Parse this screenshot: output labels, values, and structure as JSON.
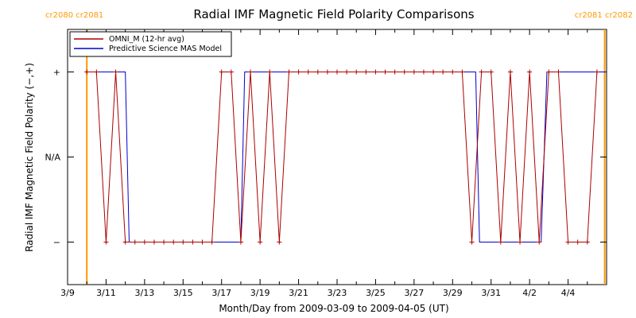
{
  "chart_data": {
    "type": "line",
    "title": "Radial IMF Magnetic Field Polarity Comparisons",
    "xlabel": "Month/Day from 2009-03-09 to 2009-04-05 (UT)",
    "ylabel": "Radial IMF Magnetic Field Polarity (−,+)",
    "x_unit": "days",
    "xlim": [
      0,
      28
    ],
    "ylim": [
      -1.5,
      1.5
    ],
    "x_ticks": [
      {
        "x": 0,
        "label": "3/9"
      },
      {
        "x": 2,
        "label": "3/11"
      },
      {
        "x": 4,
        "label": "3/13"
      },
      {
        "x": 6,
        "label": "3/15"
      },
      {
        "x": 8,
        "label": "3/17"
      },
      {
        "x": 10,
        "label": "3/19"
      },
      {
        "x": 12,
        "label": "3/21"
      },
      {
        "x": 14,
        "label": "3/23"
      },
      {
        "x": 16,
        "label": "3/25"
      },
      {
        "x": 18,
        "label": "3/27"
      },
      {
        "x": 20,
        "label": "3/29"
      },
      {
        "x": 22,
        "label": "3/31"
      },
      {
        "x": 24,
        "label": "4/2"
      },
      {
        "x": 26,
        "label": "4/4"
      }
    ],
    "y_ticks": [
      {
        "y": 1,
        "label": "+"
      },
      {
        "y": 0,
        "label": "N/A"
      },
      {
        "y": -1,
        "label": "−"
      }
    ],
    "cr_markers": {
      "color": "#ff9900",
      "lines_x": [
        1.0,
        27.9
      ],
      "left_label": "cr2080 cr2081",
      "right_label": "cr2081 cr2082"
    },
    "legend": {
      "position": "top-left",
      "entries": [
        {
          "label": "OMNI_M (12-hr avg)",
          "color": "#aa0000"
        },
        {
          "label": "Predictive Science MAS Model",
          "color": "#0000cc"
        }
      ]
    },
    "series": [
      {
        "name": "OMNI_M (12-hr avg)",
        "color": "#aa0000",
        "marker": "+",
        "x": [
          1.0,
          1.5,
          2.0,
          2.5,
          3.0,
          3.5,
          4.0,
          4.5,
          5.0,
          5.5,
          6.0,
          6.5,
          7.0,
          7.5,
          8.0,
          8.5,
          9.0,
          9.5,
          10.0,
          10.5,
          11.0,
          11.5,
          12.0,
          12.5,
          13.0,
          13.5,
          14.0,
          14.5,
          15.0,
          15.5,
          16.0,
          16.5,
          17.0,
          17.5,
          18.0,
          18.5,
          19.0,
          19.5,
          20.0,
          20.5,
          21.0,
          21.5,
          22.0,
          22.5,
          23.0,
          23.5,
          24.0,
          24.5,
          25.0,
          25.5,
          26.0,
          26.5,
          27.0,
          27.5
        ],
        "y": [
          1,
          1,
          -1,
          1,
          -1,
          -1,
          -1,
          -1,
          -1,
          -1,
          -1,
          -1,
          -1,
          -1,
          1,
          1,
          -1,
          1,
          -1,
          1,
          -1,
          1,
          1,
          1,
          1,
          1,
          1,
          1,
          1,
          1,
          1,
          1,
          1,
          1,
          1,
          1,
          1,
          1,
          1,
          1,
          -1,
          1,
          1,
          -1,
          1,
          -1,
          1,
          -1,
          1,
          1,
          -1,
          -1,
          -1,
          1
        ]
      },
      {
        "name": "Predictive Science MAS Model",
        "color": "#0000cc",
        "marker": "none",
        "x": [
          1.0,
          3.0,
          3.2,
          9.0,
          9.2,
          21.2,
          21.4,
          24.6,
          24.9,
          28.0
        ],
        "y": [
          1,
          1,
          -1,
          -1,
          1,
          1,
          -1,
          -1,
          1,
          1
        ]
      }
    ]
  }
}
